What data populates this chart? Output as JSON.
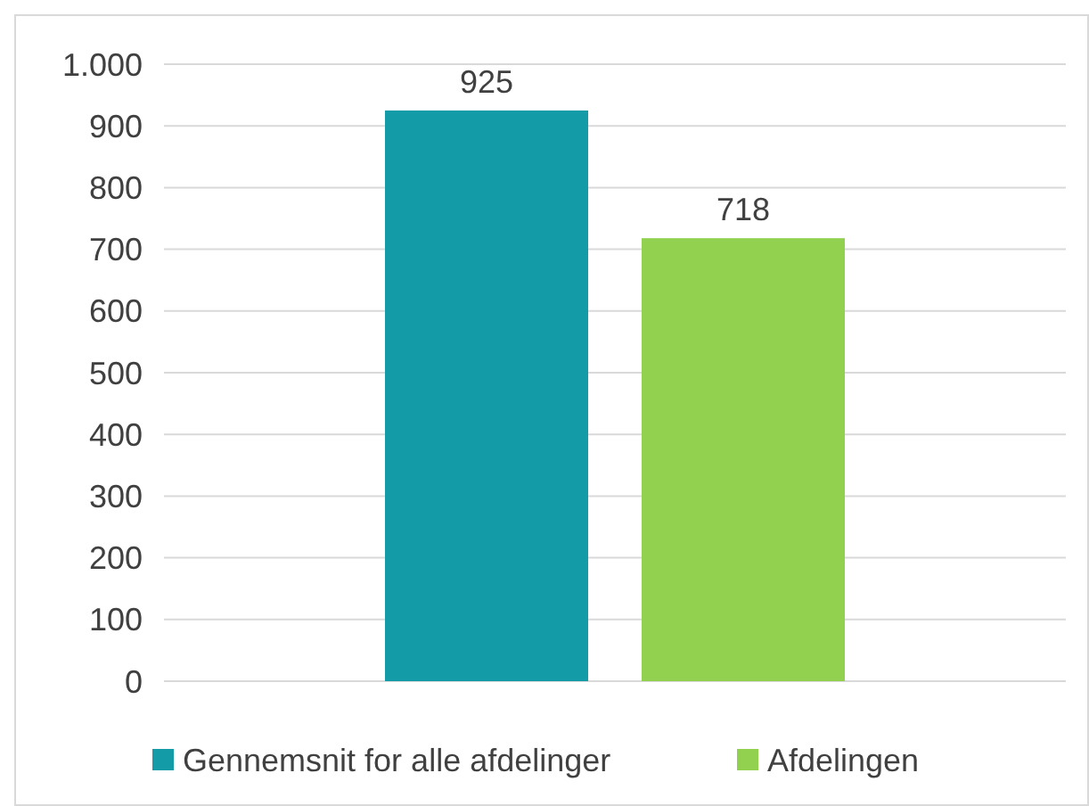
{
  "chart_data": {
    "type": "bar",
    "categories": [
      null
    ],
    "series": [
      {
        "name": "Gennemsnit for alle afdelinger",
        "color": "#139ca7",
        "values": [
          925
        ]
      },
      {
        "name": "Afdelingen",
        "color": "#92d050",
        "values": [
          718
        ]
      }
    ],
    "ylim": [
      0,
      1000
    ],
    "yticks": [
      0,
      100,
      200,
      300,
      400,
      500,
      600,
      700,
      800,
      900,
      {
        "value": 1000,
        "label": "1.000"
      }
    ],
    "grid": "y",
    "legend": "bottom",
    "data_labels": true
  }
}
